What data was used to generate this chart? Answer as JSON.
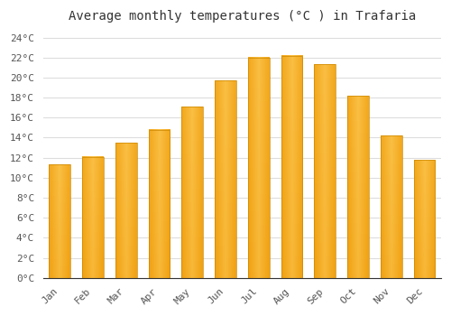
{
  "title": "Average monthly temperatures (°C ) in Trafaria",
  "months": [
    "Jan",
    "Feb",
    "Mar",
    "Apr",
    "May",
    "Jun",
    "Jul",
    "Aug",
    "Sep",
    "Oct",
    "Nov",
    "Dec"
  ],
  "values": [
    11.3,
    12.1,
    13.5,
    14.8,
    17.1,
    19.7,
    22.0,
    22.2,
    21.3,
    18.2,
    14.2,
    11.8
  ],
  "bar_color_light": "#FFD060",
  "bar_color_dark": "#F0A010",
  "background_color": "#FFFFFF",
  "plot_bg_color": "#FFFFFF",
  "grid_color": "#DDDDDD",
  "ylim": [
    0,
    25
  ],
  "yticks": [
    0,
    2,
    4,
    6,
    8,
    10,
    12,
    14,
    16,
    18,
    20,
    22,
    24
  ],
  "title_fontsize": 10,
  "tick_fontsize": 8,
  "font_family": "monospace"
}
